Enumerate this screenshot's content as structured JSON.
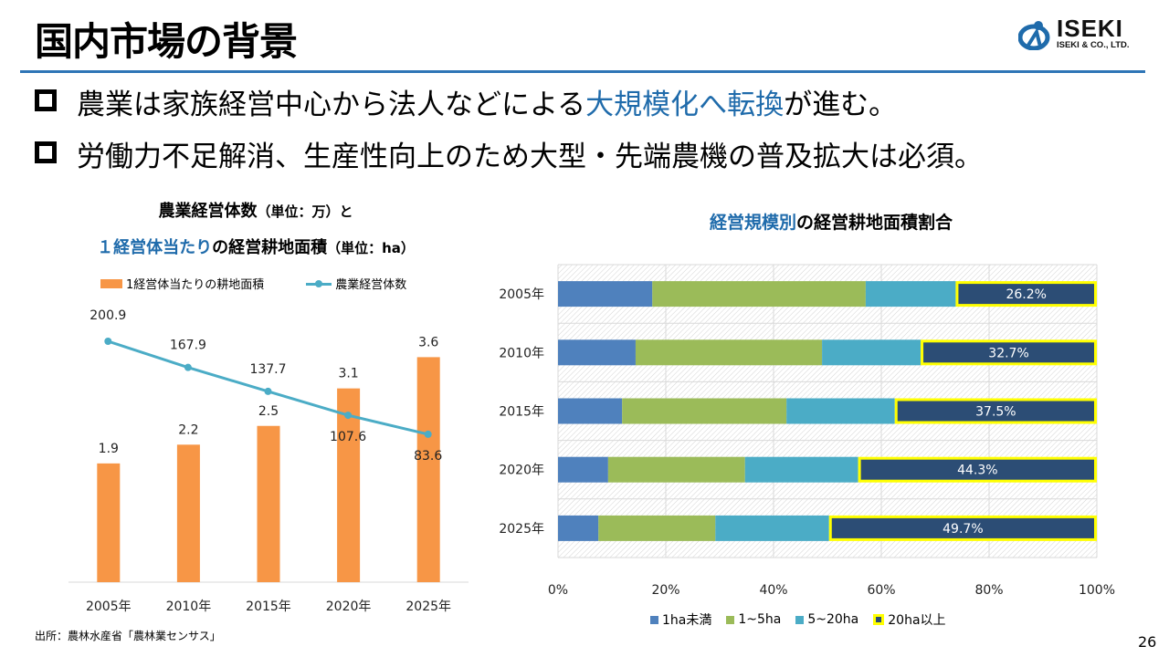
{
  "page": {
    "title": "国内市場の背景",
    "page_number": "26",
    "source": "出所：農林水産省「農林業センサス」"
  },
  "logo": {
    "icon": "iseki-logo-mark-icon",
    "name": "ISEKI",
    "subtitle": "ISEKI & CO., LTD.",
    "color": "#1f6bab"
  },
  "bullets": [
    {
      "pre": "農業は家族経営中心から法人などによる",
      "highlight": "大規模化へ転換",
      "post": "が進む。"
    },
    {
      "pre": "労働力不足解消、生産性向上のため大型・先端農機の普及拡大は必須。",
      "highlight": "",
      "post": ""
    }
  ],
  "colors": {
    "accent": "#1f6bab",
    "rule": "#2e75b6",
    "bar_orange": "#f79646",
    "line_teal": "#4bacc6",
    "seg_lt1": "#4f81bd",
    "seg_1to5": "#9bbb59",
    "seg_5to20": "#4bacc6",
    "seg_20plus": "#2c4d75",
    "highlight_border": "#ffff00"
  },
  "chart_data": [
    {
      "type": "bar+line",
      "title_line1": "農業経営体数",
      "title_line1_unit": "（単位：万）と",
      "title_line2_highlight": "１経営体当たり",
      "title_line2_rest": "の経営耕地面積",
      "title_line2_unit": "（単位：ha）",
      "categories": [
        "2005年",
        "2010年",
        "2015年",
        "2020年",
        "2025年"
      ],
      "series": [
        {
          "name": "1経営体当たりの耕地面積",
          "kind": "bar",
          "values": [
            1.9,
            2.2,
            2.5,
            3.1,
            3.6
          ],
          "labels": [
            "1.9",
            "2.2",
            "2.5",
            "3.1",
            "3.6"
          ]
        },
        {
          "name": "農業経営体数",
          "kind": "line",
          "values": [
            200.9,
            167.9,
            137.7,
            107.6,
            83.6
          ],
          "labels": [
            "200.9",
            "167.9",
            "137.7",
            "107.6",
            "83.6"
          ]
        }
      ],
      "legend_position": "top",
      "grid": false
    },
    {
      "type": "bar",
      "orientation": "horizontal-stacked-100",
      "title_highlight": "経営規模別",
      "title_rest": "の経営耕地面積割合",
      "categories": [
        "2005年",
        "2010年",
        "2015年",
        "2020年",
        "2025年"
      ],
      "series": [
        {
          "name": "1ha未満",
          "values": [
            17.5,
            14.4,
            11.9,
            9.3,
            7.5
          ]
        },
        {
          "name": "1~5ha",
          "values": [
            39.6,
            34.6,
            30.5,
            25.4,
            21.7
          ]
        },
        {
          "name": "5~20ha",
          "values": [
            16.7,
            18.3,
            20.1,
            21.0,
            21.1
          ]
        },
        {
          "name": "20ha以上",
          "values": [
            26.2,
            32.7,
            37.5,
            44.3,
            49.7
          ],
          "labels": [
            "26.2%",
            "32.7%",
            "37.5%",
            "44.3%",
            "49.7%"
          ]
        }
      ],
      "xticks": [
        "0%",
        "20%",
        "40%",
        "60%",
        "80%",
        "100%"
      ],
      "xlim": [
        0,
        100
      ],
      "legend_position": "bottom",
      "grid": true
    }
  ]
}
